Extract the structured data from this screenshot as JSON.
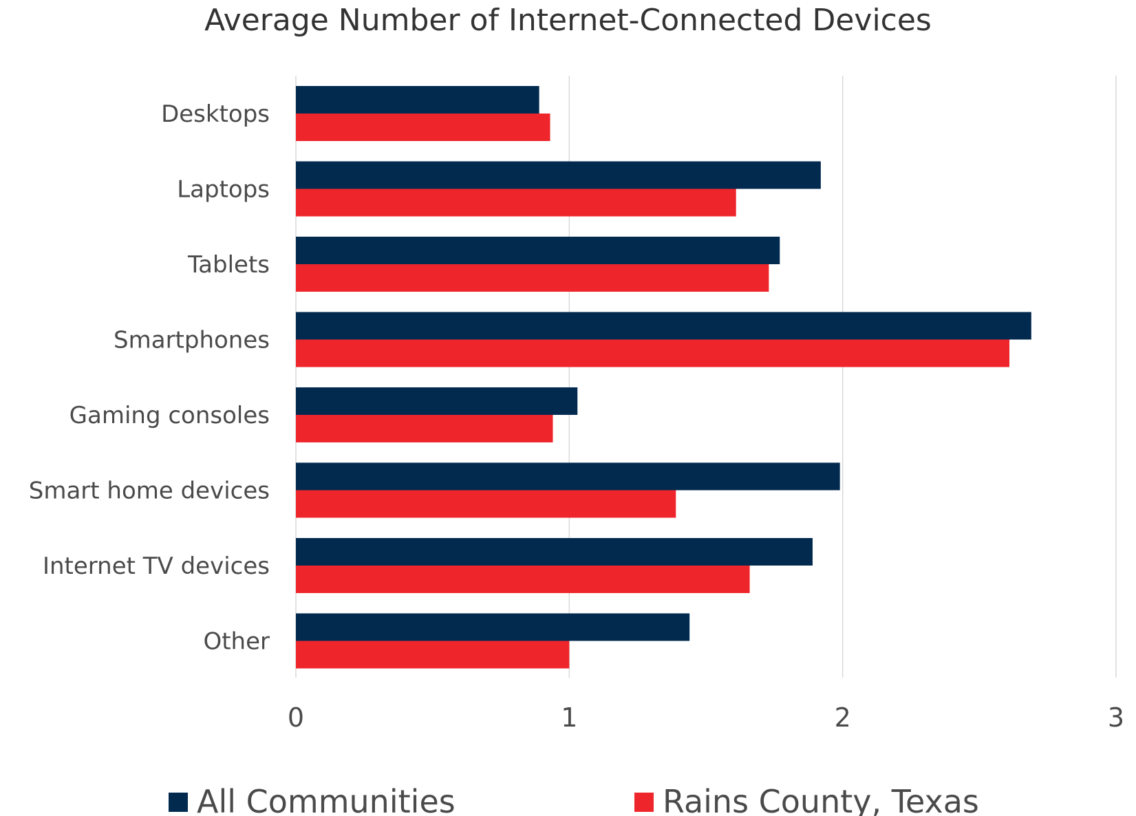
{
  "chart_data": {
    "type": "bar",
    "orientation": "horizontal",
    "title": "Average Number of Internet-Connected Devices",
    "categories": [
      "Desktops",
      "Laptops",
      "Tablets",
      "Smartphones",
      "Gaming consoles",
      "Smart home devices",
      "Internet TV devices",
      "Other"
    ],
    "series": [
      {
        "name": "All Communities",
        "color": "#022a4f",
        "values": [
          0.89,
          1.92,
          1.77,
          2.69,
          1.03,
          1.99,
          1.89,
          1.44
        ]
      },
      {
        "name": "Rains County, Texas",
        "color": "#ee262c",
        "values": [
          0.93,
          1.61,
          1.73,
          2.61,
          0.94,
          1.39,
          1.66,
          1.0
        ]
      }
    ],
    "xlim": [
      0,
      3
    ],
    "xticks": [
      "0",
      "1",
      "2",
      "3"
    ],
    "xlabel": "",
    "ylabel": "",
    "grid": "vertical",
    "legend": "bottom"
  }
}
